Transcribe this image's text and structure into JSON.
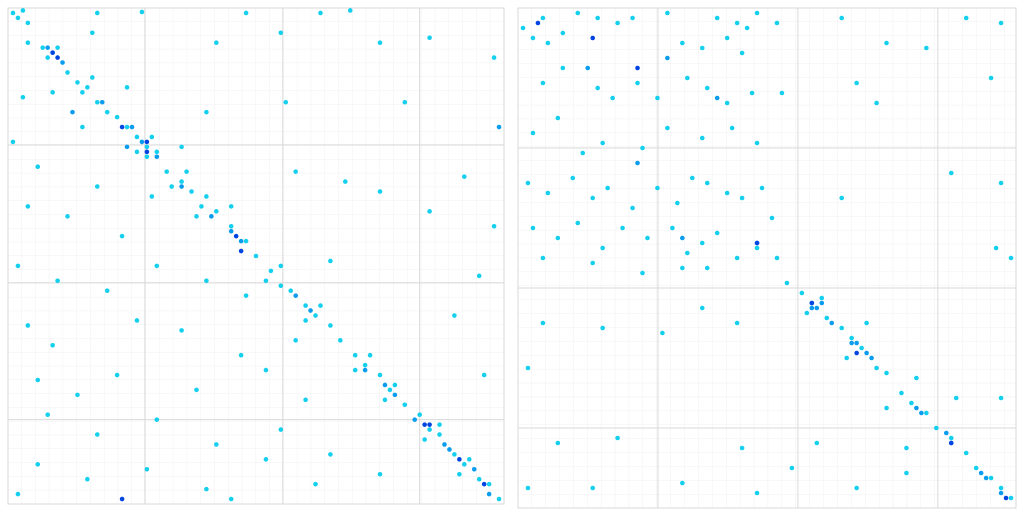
{
  "chart_data": [
    {
      "type": "scatter",
      "xlim": [
        0,
        100
      ],
      "ylim": [
        100,
        0
      ],
      "xticks": [
        27.6,
        55.4,
        83
      ],
      "yticks": [
        27.6,
        55.4,
        83
      ],
      "grid": true,
      "series": [
        {
          "color": "#14d0ee",
          "x": [
            2,
            4,
            7,
            9,
            12,
            14,
            16,
            18,
            20,
            22,
            24,
            26,
            28,
            30,
            32,
            35,
            37,
            39,
            42,
            45,
            48,
            50,
            53,
            55,
            57,
            60,
            62,
            65,
            67,
            70,
            72,
            75,
            77,
            80,
            83,
            85,
            87,
            90,
            92,
            95,
            97,
            99,
            8,
            10,
            15,
            17,
            26,
            29,
            33,
            36,
            40,
            38,
            52,
            55,
            60,
            63,
            70,
            73,
            78,
            76,
            84,
            87,
            93,
            91,
            1,
            3,
            18,
            27,
            48,
            63,
            69,
            17,
            4,
            42,
            55,
            75,
            85,
            98,
            3,
            9,
            24,
            40,
            56,
            80,
            1,
            15,
            6,
            18,
            28,
            35,
            58,
            68,
            92,
            4,
            12,
            23,
            29,
            45,
            75,
            85,
            98,
            2,
            10,
            20,
            30,
            40,
            48,
            65,
            95,
            4,
            9,
            26,
            35,
            47,
            58,
            90,
            6,
            14,
            22,
            38,
            52,
            60,
            96,
            8,
            18,
            30,
            42,
            55,
            65,
            6,
            16,
            28,
            40,
            52,
            62,
            75,
            2,
            45
          ],
          "y": [
            2,
            3,
            8,
            9,
            13,
            15,
            16,
            19,
            21,
            22,
            24,
            26,
            28,
            29,
            33,
            35,
            37,
            40,
            41,
            44,
            47,
            50,
            53,
            56,
            57,
            60,
            62,
            64,
            67,
            70,
            72,
            74,
            77,
            80,
            82,
            85,
            86,
            90,
            92,
            95,
            96,
            99,
            10,
            8,
            17,
            14,
            29,
            26,
            36,
            33,
            38,
            42,
            55,
            52,
            63,
            60,
            73,
            70,
            76,
            79,
            87,
            84,
            91,
            94,
            1,
            0.5,
            1,
            0.8,
            1,
            1,
            0.5,
            5,
            7,
            7,
            5,
            7,
            6,
            10,
            18,
            17,
            16,
            21,
            19,
            19,
            27,
            24,
            32,
            36,
            30,
            28,
            33,
            35,
            34,
            40,
            42,
            46,
            38,
            40,
            37,
            41,
            44,
            52,
            55,
            57,
            52,
            55,
            58,
            51,
            54,
            64,
            68,
            63,
            65,
            70,
            67,
            62,
            75,
            78,
            74,
            77,
            73,
            79,
            74,
            82,
            86,
            83,
            88,
            85,
            90,
            92,
            95,
            93,
            97,
            91,
            96,
            94,
            98,
            99
          ]
        },
        {
          "color": "#0a9cee",
          "x": [
            8,
            11,
            19,
            25,
            27,
            30,
            35,
            41,
            45,
            47,
            58,
            61,
            72,
            76,
            78,
            82,
            88,
            89,
            94,
            97,
            24,
            13,
            99
          ],
          "y": [
            8,
            11,
            19,
            24,
            27,
            30,
            36,
            42,
            45,
            47,
            58,
            61,
            73,
            76,
            78,
            83,
            88,
            89,
            93,
            98,
            28,
            21,
            24
          ]
        },
        {
          "color": "#0044e2",
          "x": [
            9,
            10,
            23,
            28,
            28,
            46,
            47,
            84,
            85,
            91,
            96,
            23
          ],
          "y": [
            9,
            10,
            24,
            27,
            29,
            46,
            49,
            84,
            84,
            91,
            96,
            99
          ]
        }
      ]
    },
    {
      "type": "scatter",
      "xlim": [
        0,
        100
      ],
      "ylim": [
        100,
        0
      ],
      "xticks": [
        28.1,
        56.2,
        84.3
      ],
      "yticks": [
        28,
        56,
        84
      ],
      "grid": true,
      "series": [
        {
          "color": "#14d0ee",
          "x": [
            1,
            3,
            5,
            6,
            9,
            12,
            16,
            20,
            23,
            30,
            40,
            44,
            46,
            48,
            52,
            33,
            37,
            42,
            45,
            5,
            9,
            16,
            19,
            24,
            28,
            34,
            38,
            42,
            47,
            53,
            3,
            8,
            13,
            17,
            25,
            30,
            37,
            43,
            48,
            2,
            6,
            11,
            15,
            18,
            23,
            28,
            32,
            35,
            38,
            42,
            45,
            49,
            51,
            3,
            8,
            12,
            17,
            21,
            26,
            31,
            34,
            37,
            40,
            44,
            48,
            52,
            5,
            15,
            25,
            33,
            38,
            65,
            90,
            97,
            74,
            82,
            95,
            68,
            72,
            97,
            87,
            65,
            96,
            99,
            5,
            17,
            29,
            37,
            44,
            54,
            57,
            59,
            62,
            65,
            67,
            69,
            72,
            74,
            77,
            79,
            82,
            84,
            87,
            90,
            92,
            95,
            97,
            99,
            61,
            58,
            70,
            66,
            80,
            74,
            88,
            78,
            97,
            2,
            8,
            20,
            45,
            60,
            2,
            15,
            33,
            48,
            55,
            78,
            68
          ],
          "y": [
            4,
            6,
            2,
            7,
            5,
            1,
            2,
            3,
            2,
            1,
            2,
            3,
            4,
            1,
            3,
            7,
            8,
            6,
            9,
            15,
            12,
            16,
            18,
            15,
            18,
            14,
            16,
            19,
            17,
            17,
            25,
            22,
            29,
            27,
            28,
            24,
            26,
            24,
            27,
            35,
            37,
            34,
            38,
            36,
            40,
            36,
            39,
            34,
            35,
            37,
            38,
            36,
            42,
            44,
            46,
            43,
            48,
            44,
            46,
            44,
            49,
            47,
            45,
            50,
            48,
            50,
            50,
            51,
            53,
            52,
            52,
            2,
            2,
            3,
            7,
            8,
            14,
            15,
            19,
            35,
            33,
            38,
            48,
            50,
            63,
            64,
            65,
            60,
            63,
            55,
            57,
            59,
            62,
            64,
            66,
            68,
            72,
            73,
            77,
            79,
            81,
            84,
            86,
            89,
            92,
            94,
            96,
            98,
            58,
            61,
            63,
            70,
            74,
            80,
            78,
            88,
            78,
            72,
            87,
            86,
            88,
            87,
            96,
            96,
            95,
            97,
            92,
            93,
            96
          ]
        },
        {
          "color": "#0a9cee",
          "x": [
            59,
            60,
            61,
            63,
            67,
            68,
            70,
            71,
            80,
            81,
            86,
            87,
            93,
            94,
            97,
            48,
            33,
            40,
            24,
            14,
            30
          ],
          "y": [
            60,
            60,
            59,
            63,
            67,
            67,
            69,
            70,
            80,
            81,
            85,
            87,
            93,
            94,
            97,
            47,
            46,
            18,
            31,
            12,
            10
          ]
        },
        {
          "color": "#0044e2",
          "x": [
            48,
            59,
            68,
            87,
            98,
            15,
            4,
            24
          ],
          "y": [
            47,
            59,
            69,
            87,
            98,
            6,
            3,
            12
          ]
        }
      ]
    }
  ]
}
